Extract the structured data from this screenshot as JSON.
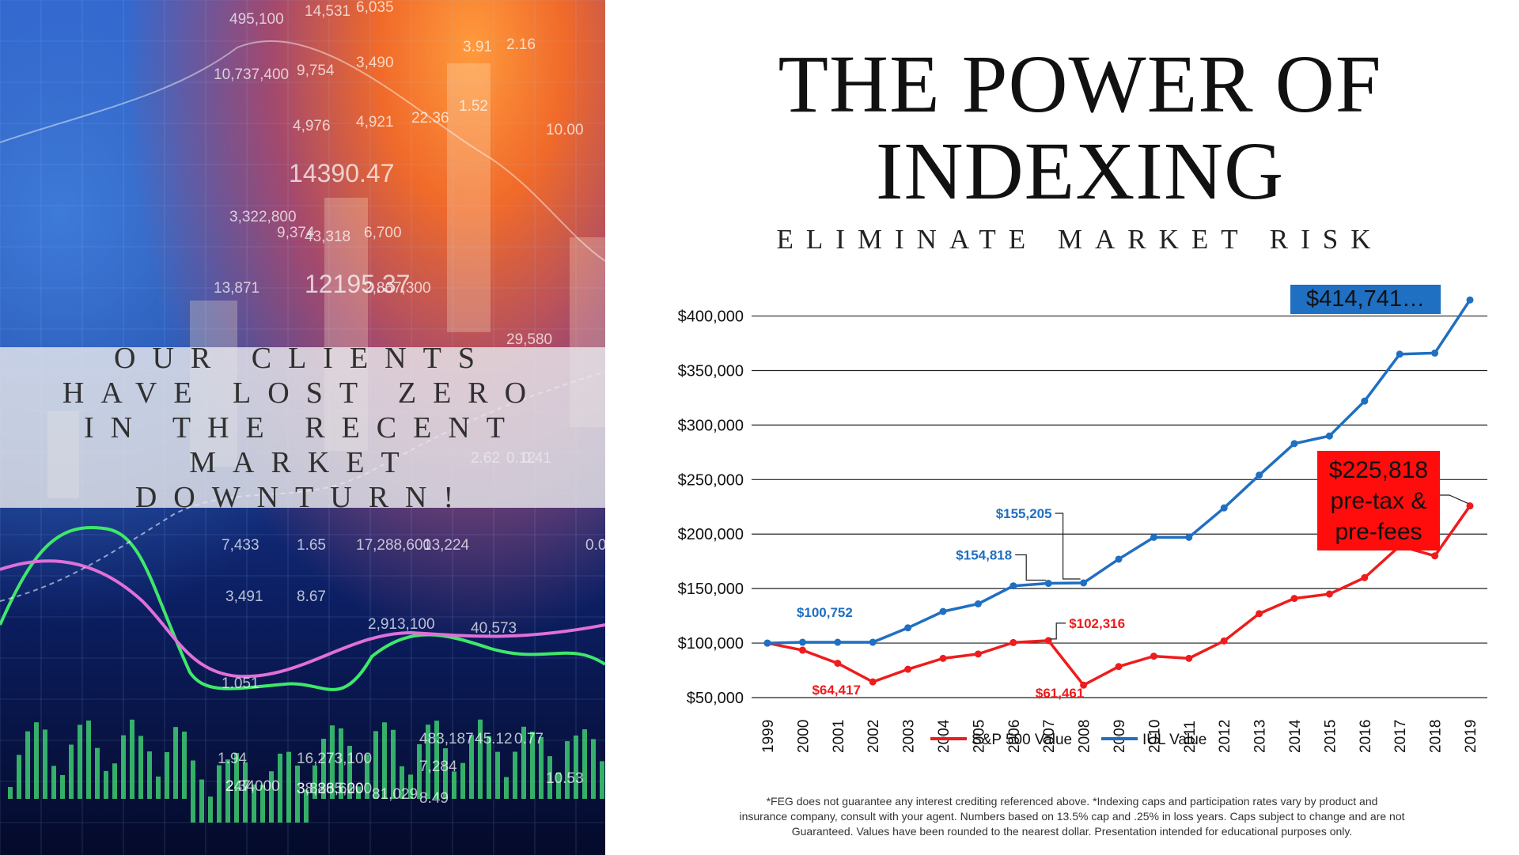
{
  "left_panel": {
    "background_numbers": [
      "495,100",
      "14,531",
      "6,035",
      "10,737,400",
      "9,754",
      "3,490",
      "4,976",
      "4,921",
      "22.36",
      "1.52",
      "3.91",
      "2.16",
      "10.00",
      "14390.47",
      "9,374",
      "6,700",
      "3,322,800",
      "43,318",
      "13,871",
      "12195.37",
      "2,867,300",
      "29,580",
      "7,433",
      "1.65",
      "17,288,600",
      "13,224",
      "3,491",
      "8.67",
      "2,913,100",
      "40,573",
      "1.051",
      "1.94",
      "16,273,100",
      "247,000",
      "38,265,200",
      "483,187",
      "45.12",
      "0.77",
      "2.34",
      "3,888,600",
      "81,029",
      "7,284",
      "8.49",
      "10.53",
      "0.12",
      "2.62",
      "0.41",
      "0.0"
    ],
    "banner_text": "Our clients have lost zero in the recent market downturn!"
  },
  "header": {
    "title_line1": "The Power of",
    "title_line2": "Indexing",
    "subtitle": "Eliminate Market Risk"
  },
  "colors": {
    "sp500": "#ee1c1c",
    "iul": "#1f6fc2"
  },
  "chart_data": {
    "type": "line",
    "x": [
      "1999",
      "2000",
      "2001",
      "2002",
      "2003",
      "2004",
      "2005",
      "2006",
      "2007",
      "2008",
      "2009",
      "2010",
      "2011",
      "2012",
      "2013",
      "2014",
      "2015",
      "2016",
      "2017",
      "2018",
      "2019"
    ],
    "series": [
      {
        "name": "S&P 500 Value",
        "values": [
          100000,
          93500,
          81500,
          64417,
          76000,
          86000,
          90000,
          100500,
          102316,
          61461,
          78500,
          88000,
          86000,
          102000,
          127000,
          141000,
          145000,
          160000,
          189000,
          180000,
          225818
        ]
      },
      {
        "name": "IUL Value",
        "values": [
          100000,
          100752,
          100752,
          100752,
          114000,
          129000,
          136000,
          152500,
          154818,
          155205,
          177000,
          197000,
          197000,
          224000,
          254000,
          283000,
          290000,
          322000,
          365000,
          366000,
          414741
        ]
      }
    ],
    "ylim": [
      50000,
      420000
    ],
    "yticks": [
      "$50,000",
      "$100,000",
      "$150,000",
      "$200,000",
      "$250,000",
      "$300,000",
      "$350,000",
      "$400,000"
    ],
    "grid": true,
    "legend": "bottom",
    "annotations": {
      "iul": [
        {
          "text": "$100,752",
          "index": 1
        },
        {
          "text": "$154,818",
          "index": 8
        },
        {
          "text": "$155,205",
          "index": 9
        }
      ],
      "sp500": [
        {
          "text": "$64,417",
          "index": 3
        },
        {
          "text": "$102,316",
          "index": 8
        },
        {
          "text": "$61,461",
          "index": 9
        }
      ],
      "iul_final": "$414,741…",
      "sp500_final": [
        "$225,818",
        "pre-tax &",
        "pre-fees"
      ]
    }
  },
  "disclaimer": {
    "line1": "*FEG does not guarantee any interest crediting referenced above. *Indexing caps and participation rates vary by product and",
    "line2": "insurance company, consult with your agent. Numbers based on 13.5% cap and .25% in loss years. Caps subject to change and are not",
    "line3": "Guaranteed. Values have been rounded to the nearest dollar. Presentation intended for educational purposes only."
  }
}
